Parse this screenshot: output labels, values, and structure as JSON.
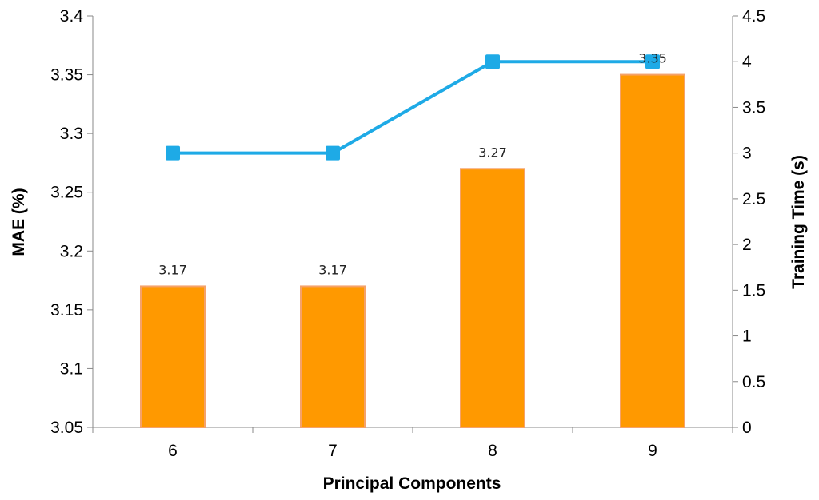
{
  "chart_data": {
    "type": "bar",
    "title": "",
    "xlabel": "Principal Components",
    "ylabel": "MAE (%)",
    "y2label": "Training Time (s)",
    "categories": [
      "6",
      "7",
      "8",
      "9"
    ],
    "ylim": [
      3.05,
      3.4
    ],
    "y_ticks": [
      "3.05",
      "3.1",
      "3.15",
      "3.2",
      "3.25",
      "3.3",
      "3.35",
      "3.4"
    ],
    "y2lim": [
      0,
      4.5
    ],
    "y2_ticks": [
      "0",
      "0.5",
      "1",
      "1.5",
      "2",
      "2.5",
      "3",
      "3.5",
      "4",
      "4.5"
    ],
    "grid": false,
    "series": [
      {
        "type": "bar",
        "axis": "left",
        "values": [
          3.17,
          3.17,
          3.27,
          3.35
        ],
        "labels": [
          "3.17",
          "3.17",
          "3.27",
          "3.35"
        ],
        "color": "#FF9900",
        "edge_color": "#F5A26A"
      },
      {
        "type": "line",
        "axis": "right",
        "values": [
          3,
          3,
          4,
          4
        ],
        "color": "#1EAAE6",
        "marker": "square"
      }
    ]
  }
}
